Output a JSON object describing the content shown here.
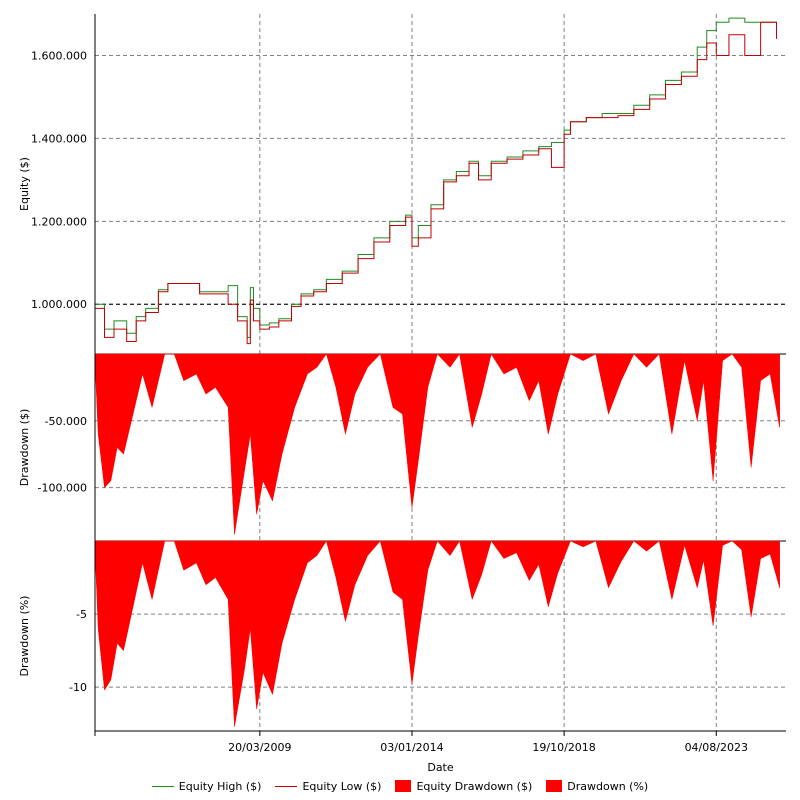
{
  "chart_data": [
    {
      "type": "line",
      "ylabel": "Equity ($)",
      "ylim": [
        880000,
        1700000
      ],
      "yticks": [
        1000000,
        1200000,
        1400000,
        1600000
      ],
      "ytick_labels": [
        "1.000.000",
        "1.200.000",
        "1.400.000",
        "1.600.000"
      ],
      "reference_line": 1000000,
      "grid": true,
      "x": [
        2004.0,
        2004.3,
        2004.6,
        2005.0,
        2005.3,
        2005.6,
        2006.0,
        2006.3,
        2006.8,
        2007.3,
        2007.8,
        2008.2,
        2008.5,
        2008.8,
        2008.9,
        2009.0,
        2009.2,
        2009.5,
        2009.8,
        2010.2,
        2010.5,
        2010.9,
        2011.3,
        2011.8,
        2012.3,
        2012.8,
        2013.3,
        2013.8,
        2014.0,
        2014.2,
        2014.6,
        2015.0,
        2015.4,
        2015.8,
        2016.1,
        2016.5,
        2017.0,
        2017.5,
        2018.0,
        2018.4,
        2018.8,
        2019.0,
        2019.5,
        2020.0,
        2020.5,
        2021.0,
        2021.5,
        2022.0,
        2022.5,
        2023.0,
        2023.3,
        2023.6,
        2024.0,
        2024.5,
        2025.0,
        2025.5
      ],
      "series": [
        {
          "name": "Equity High ($)",
          "color": "#228B22",
          "values": [
            1000000,
            940000,
            960000,
            930000,
            970000,
            990000,
            1035000,
            1050000,
            1050000,
            1030000,
            1030000,
            1045000,
            970000,
            920000,
            1040000,
            990000,
            950000,
            955000,
            965000,
            1000000,
            1025000,
            1035000,
            1060000,
            1080000,
            1120000,
            1160000,
            1200000,
            1215000,
            1160000,
            1190000,
            1240000,
            1300000,
            1320000,
            1345000,
            1310000,
            1345000,
            1355000,
            1370000,
            1380000,
            1390000,
            1420000,
            1440000,
            1450000,
            1460000,
            1460000,
            1480000,
            1505000,
            1540000,
            1560000,
            1620000,
            1660000,
            1680000,
            1690000,
            1680000,
            1680000,
            1650000
          ]
        },
        {
          "name": "Equity Low ($)",
          "color": "#C00000",
          "values": [
            990000,
            920000,
            940000,
            910000,
            960000,
            980000,
            1030000,
            1050000,
            1050000,
            1025000,
            1025000,
            1000000,
            960000,
            905000,
            1010000,
            960000,
            940000,
            945000,
            960000,
            995000,
            1020000,
            1030000,
            1050000,
            1075000,
            1110000,
            1150000,
            1190000,
            1210000,
            1140000,
            1160000,
            1230000,
            1295000,
            1310000,
            1340000,
            1300000,
            1340000,
            1350000,
            1360000,
            1375000,
            1330000,
            1410000,
            1440000,
            1450000,
            1450000,
            1455000,
            1470000,
            1495000,
            1530000,
            1550000,
            1590000,
            1630000,
            1600000,
            1650000,
            1600000,
            1680000,
            1640000
          ]
        }
      ]
    },
    {
      "type": "area",
      "ylabel": "Drawdown ($)",
      "ylim": [
        -140000,
        0
      ],
      "yticks": [
        -50000,
        -100000
      ],
      "ytick_labels": [
        "-50.000",
        "-100.000"
      ],
      "grid": true,
      "x": [
        2004.0,
        2004.1,
        2004.3,
        2004.5,
        2004.7,
        2004.9,
        2005.2,
        2005.5,
        2005.8,
        2006.2,
        2006.5,
        2006.8,
        2007.2,
        2007.5,
        2007.8,
        2008.2,
        2008.4,
        2008.7,
        2008.9,
        2009.1,
        2009.3,
        2009.6,
        2009.9,
        2010.3,
        2010.7,
        2011.0,
        2011.3,
        2011.6,
        2011.9,
        2012.2,
        2012.6,
        2013.0,
        2013.4,
        2013.7,
        2014.0,
        2014.2,
        2014.5,
        2014.8,
        2015.2,
        2015.5,
        2015.9,
        2016.2,
        2016.5,
        2016.9,
        2017.3,
        2017.7,
        2018.0,
        2018.3,
        2018.6,
        2019.0,
        2019.4,
        2019.8,
        2020.2,
        2020.6,
        2021.0,
        2021.4,
        2021.8,
        2022.2,
        2022.6,
        2023.0,
        2023.2,
        2023.5,
        2023.8,
        2024.1,
        2024.4,
        2024.7,
        2025.0,
        2025.3,
        2025.6
      ],
      "series": [
        {
          "name": "Equity Drawdown ($)",
          "color": "#FF0000",
          "values": [
            -5000,
            -60000,
            -100000,
            -95000,
            -70000,
            -75000,
            -45000,
            -15000,
            -40000,
            0,
            0,
            -20000,
            -15000,
            -30000,
            -25000,
            -40000,
            -135000,
            -90000,
            -60000,
            -120000,
            -95000,
            -110000,
            -75000,
            -40000,
            -15000,
            -10000,
            0,
            -25000,
            -60000,
            -30000,
            -10000,
            0,
            -40000,
            -45000,
            -115000,
            -80000,
            -25000,
            0,
            -10000,
            0,
            -55000,
            -30000,
            0,
            -15000,
            -10000,
            -35000,
            -20000,
            -60000,
            -30000,
            0,
            -5000,
            0,
            -45000,
            -20000,
            0,
            -10000,
            0,
            -60000,
            -5000,
            -50000,
            -20000,
            -95000,
            -5000,
            0,
            -10000,
            -85000,
            -20000,
            -15000,
            -55000
          ]
        }
      ]
    },
    {
      "type": "area",
      "ylabel": "Drawdown (%)",
      "ylim": [
        -13,
        0
      ],
      "yticks": [
        -5,
        -10
      ],
      "ytick_labels": [
        "-5",
        "-10"
      ],
      "grid": true,
      "xlabel": "Date",
      "xticks": [
        2009.2,
        2014.0,
        2018.8,
        2023.6
      ],
      "xtick_labels": [
        "20/03/2009",
        "03/01/2014",
        "19/10/2018",
        "04/08/2023"
      ],
      "x": [
        2004.0,
        2004.1,
        2004.3,
        2004.5,
        2004.7,
        2004.9,
        2005.2,
        2005.5,
        2005.8,
        2006.2,
        2006.5,
        2006.8,
        2007.2,
        2007.5,
        2007.8,
        2008.2,
        2008.4,
        2008.7,
        2008.9,
        2009.1,
        2009.3,
        2009.6,
        2009.9,
        2010.3,
        2010.7,
        2011.0,
        2011.3,
        2011.6,
        2011.9,
        2012.2,
        2012.6,
        2013.0,
        2013.4,
        2013.7,
        2014.0,
        2014.2,
        2014.5,
        2014.8,
        2015.2,
        2015.5,
        2015.9,
        2016.2,
        2016.5,
        2016.9,
        2017.3,
        2017.7,
        2018.0,
        2018.3,
        2018.6,
        2019.0,
        2019.4,
        2019.8,
        2020.2,
        2020.6,
        2021.0,
        2021.4,
        2021.8,
        2022.2,
        2022.6,
        2023.0,
        2023.2,
        2023.5,
        2023.8,
        2024.1,
        2024.4,
        2024.7,
        2025.0,
        2025.3,
        2025.6
      ],
      "series": [
        {
          "name": "Drawdown (%)",
          "color": "#FF0000",
          "values": [
            -0.5,
            -6,
            -10.2,
            -9.5,
            -7,
            -7.5,
            -4.5,
            -1.5,
            -4,
            0,
            0,
            -2,
            -1.5,
            -3,
            -2.5,
            -4,
            -12.7,
            -9,
            -6,
            -11.5,
            -9,
            -10.5,
            -7,
            -4,
            -1.5,
            -1,
            0,
            -2.5,
            -5.5,
            -3,
            -1,
            0,
            -3.5,
            -4,
            -9.8,
            -6.5,
            -2,
            0,
            -1,
            0,
            -4,
            -2.3,
            0,
            -1.2,
            -0.8,
            -2.7,
            -1.6,
            -4.5,
            -2.2,
            0,
            -0.4,
            0,
            -3.2,
            -1.4,
            0,
            -0.7,
            0,
            -4,
            -0.3,
            -3.2,
            -1.3,
            -5.8,
            -0.3,
            0,
            -0.6,
            -5.2,
            -1.2,
            -0.9,
            -3.2
          ]
        }
      ]
    }
  ],
  "x_range": [
    2004.0,
    2025.8
  ],
  "legend": {
    "items": [
      {
        "label": "Equity High ($)",
        "kind": "line",
        "color": "#228B22"
      },
      {
        "label": "Equity Low ($)",
        "kind": "line",
        "color": "#C00000"
      },
      {
        "label": "Equity Drawdown ($)",
        "kind": "box",
        "color": "#FF0000"
      },
      {
        "label": "Drawdown (%)",
        "kind": "box",
        "color": "#FF0000"
      }
    ]
  }
}
